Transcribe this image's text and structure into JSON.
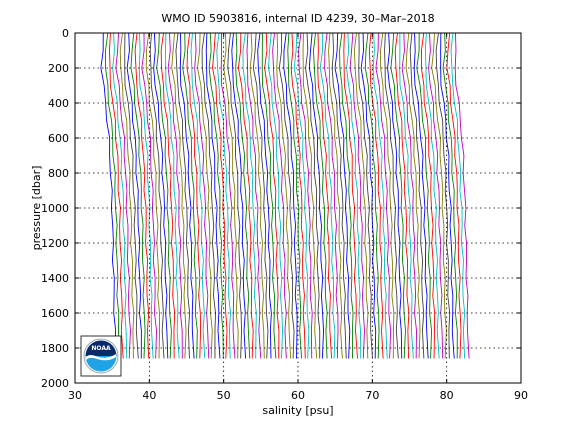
{
  "chart_data": {
    "type": "line",
    "title": "WMO ID 5903816, internal ID 4239, 30–Mar–2018",
    "xlabel": "salinity [psu]",
    "ylabel": "pressure [dbar]",
    "xlim": [
      30,
      90
    ],
    "ylim": [
      0,
      2000
    ],
    "y_reversed": true,
    "grid": true,
    "x_ticks": [
      30,
      40,
      50,
      60,
      70,
      80,
      90
    ],
    "y_ticks": [
      0,
      200,
      400,
      600,
      800,
      1000,
      1200,
      1400,
      1600,
      1800,
      2000
    ],
    "trace_colors": [
      "#0000ff",
      "#008000",
      "#ff0000",
      "#00bfbf",
      "#bf00bf",
      "#7f7f00",
      "#404040"
    ],
    "series": [
      {
        "x_min": 33.8,
        "x_max": 81.5,
        "x_step": 0.5,
        "pressure": [
          0,
          100,
          200,
          300,
          400,
          500,
          600,
          700,
          800,
          900,
          1000,
          1100,
          1200,
          1300,
          1400,
          1500,
          1600,
          1700,
          1860
        ],
        "shape_offset": [
          0,
          -0.1,
          -0.2,
          0.05,
          0.3,
          0.55,
          0.75,
          0.9,
          1.0,
          1.1,
          1.2,
          1.25,
          1.3,
          1.35,
          1.4,
          1.45,
          1.5,
          1.55,
          1.6
        ]
      }
    ]
  },
  "logo": {
    "text": "NOAA",
    "colors": {
      "top": "#0a2a6b",
      "bottom": "#1fa3e6",
      "ring": "#ffffff"
    }
  }
}
